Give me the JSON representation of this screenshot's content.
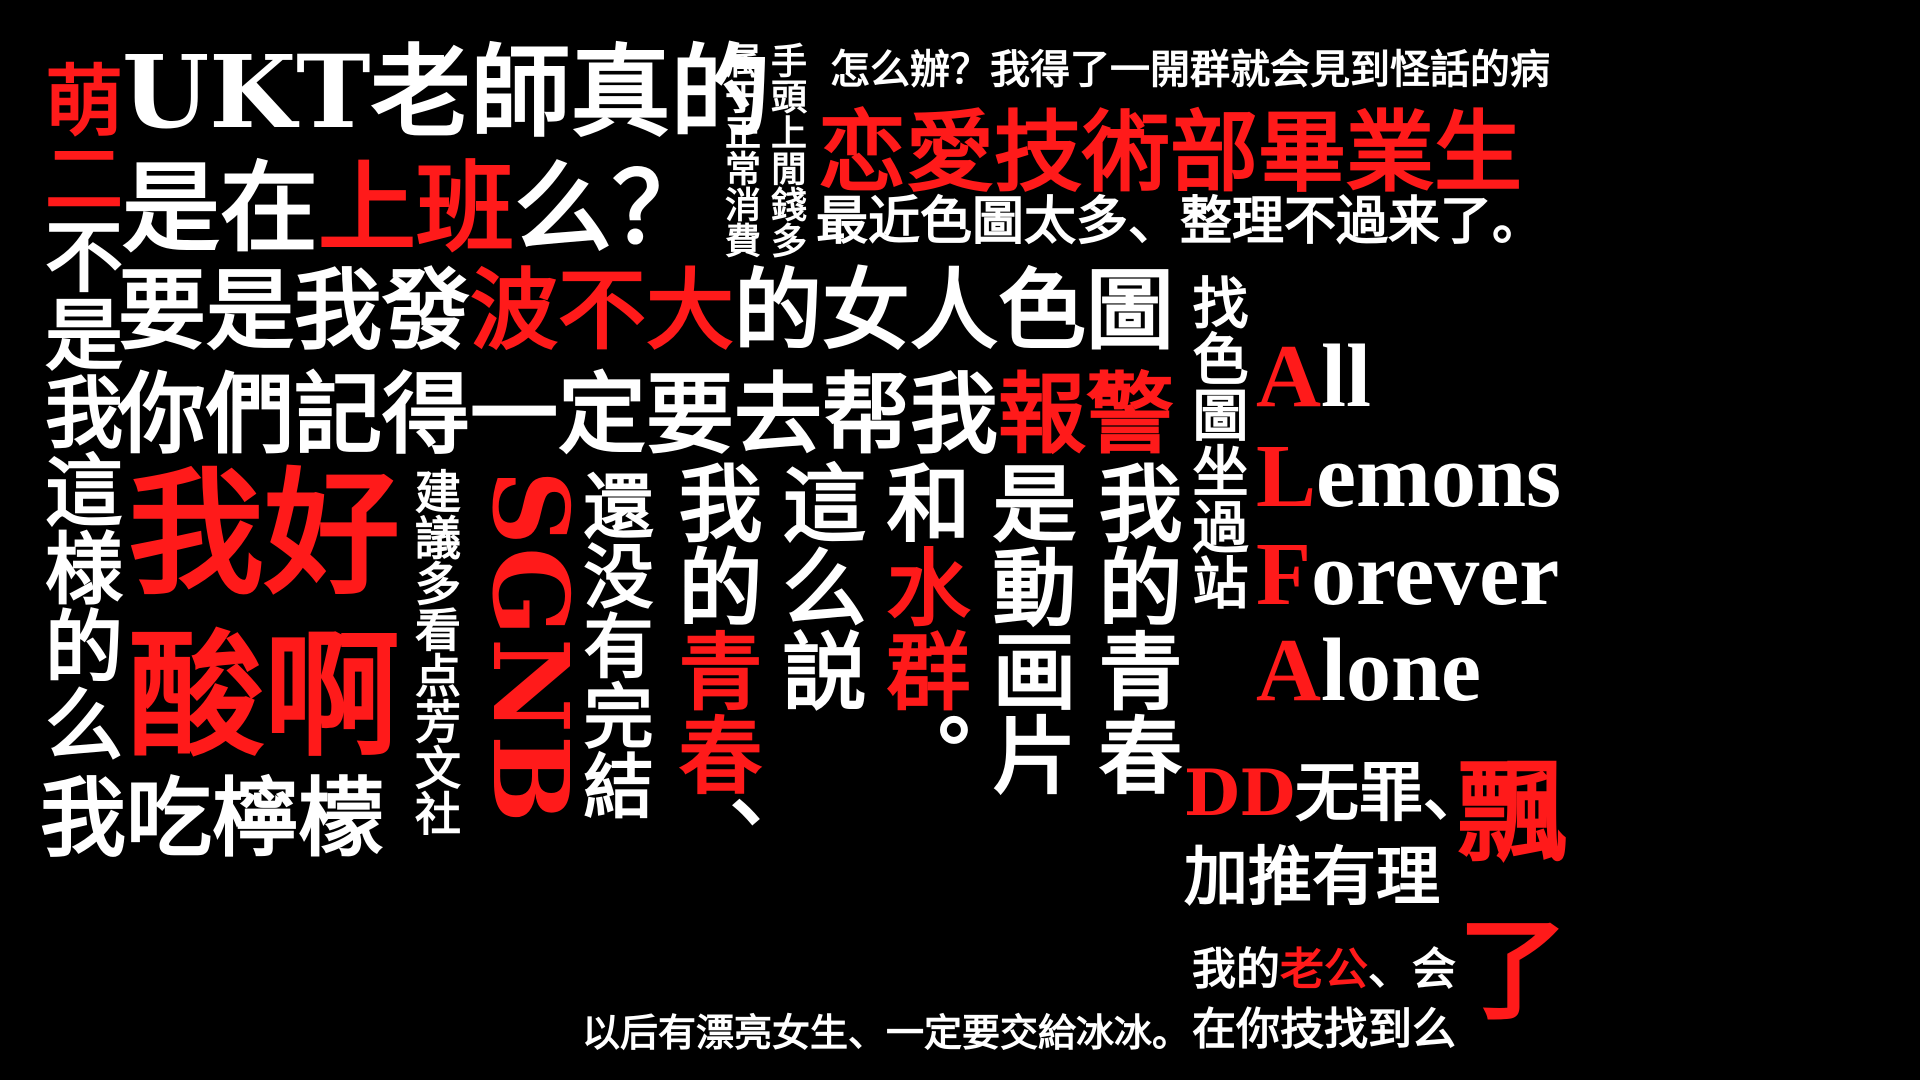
{
  "colors": {
    "background": "#000000",
    "white": "#ffffff",
    "red": "#ff1a1a"
  },
  "left_column": {
    "red": "萌二",
    "white": "不是我這様的么"
  },
  "ukt": {
    "title": "UKT老師真的",
    "line2_a": "是在",
    "line2_red": "上班",
    "line2_b": "么？"
  },
  "side_note": {
    "col1": "手頭上閒錢多",
    "col2": "属于正常消費"
  },
  "top_right": {
    "question": "怎么辦？我得了一開群就会見到怪話的病",
    "red_title": "恋愛技術部畢業生",
    "subtitle": "最近色圖太多、整理不過来了。"
  },
  "line_waves": {
    "a": "要是我發",
    "red": "波不大",
    "b": "的女人色圖"
  },
  "line_police": {
    "a": "你們記得一定要去帮我",
    "red": "報警"
  },
  "big_red": {
    "line1": "我好",
    "line2": "酸啊"
  },
  "lemon": "我吃檸檬",
  "suggest": "建議多看点芳文社",
  "sgnb": "SGNB",
  "columns": {
    "c1": "還没有完結",
    "c2_a": "我的",
    "c2_red": "青春",
    "c2_b": "、",
    "c3": "這么説",
    "c4_a": "和",
    "c4_red": "水群",
    "c4_b": "。",
    "c5": "是動画片",
    "c6": "我的青春"
  },
  "bottom_line": "以后有漂亮女生、一定要交給冰冰。",
  "find": "找色圖坐過站",
  "all": {
    "l1_red": "A",
    "l1": "ll",
    "l2_red": "L",
    "l2": "emons",
    "l3_red": "F",
    "l3": "orever",
    "l4_red": "A",
    "l4": "lone"
  },
  "dd": {
    "red": "DD",
    "white": "无罪、",
    "line2": "加推有理"
  },
  "piao": {
    "red1": "飄",
    "red2": "了"
  },
  "husband": {
    "a": "我的",
    "red": "老公",
    "b": "、会",
    "line2": "在你技找到么"
  }
}
